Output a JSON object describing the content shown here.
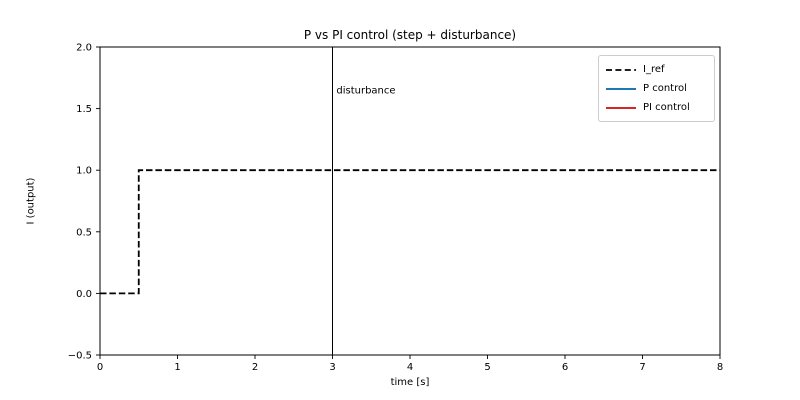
{
  "chart_data": {
    "type": "line",
    "title": "P vs PI control (step + disturbance)",
    "xlabel": "time [s]",
    "ylabel": "I (output)",
    "xlim": [
      0,
      8
    ],
    "ylim": [
      -0.5,
      2.0
    ],
    "xticks": {
      "values": [
        0,
        1,
        2,
        3,
        4,
        5,
        6,
        7,
        8
      ],
      "labels": [
        "0",
        "1",
        "2",
        "3",
        "4",
        "5",
        "6",
        "7",
        "8"
      ]
    },
    "yticks": {
      "values": [
        -0.5,
        0.0,
        0.5,
        1.0,
        1.5,
        2.0
      ],
      "labels": [
        "−0.5",
        "0.0",
        "0.5",
        "1.0",
        "1.5",
        "2.0"
      ]
    },
    "grid": false,
    "legend_position": "upper right",
    "series": [
      {
        "name": "I_ref",
        "color": "#000000",
        "style": "dashed",
        "linewidth": 1.8,
        "x": [
          0,
          0.5,
          0.5,
          8
        ],
        "y": [
          0,
          0,
          1,
          1
        ]
      },
      {
        "name": "P control",
        "color": "#1f77b4",
        "style": "solid",
        "linewidth": 2,
        "x": [],
        "y": []
      },
      {
        "name": "PI control",
        "color": "#d62728",
        "style": "solid",
        "linewidth": 2,
        "x": [],
        "y": []
      }
    ],
    "vlines": [
      {
        "x": 3,
        "color": "#000000",
        "linewidth": 1
      }
    ],
    "annotations": [
      {
        "text": "disturbance",
        "x": 3.05,
        "y": 1.64
      }
    ],
    "colors": {
      "axes": "#000000",
      "background": "#ffffff",
      "legend_border": "#cccccc"
    }
  }
}
